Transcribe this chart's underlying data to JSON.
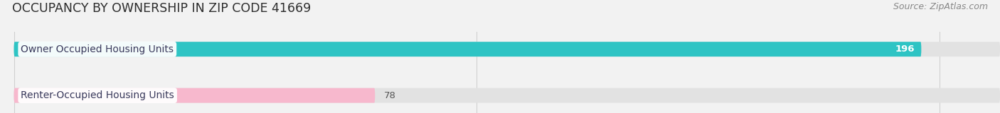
{
  "title": "OCCUPANCY BY OWNERSHIP IN ZIP CODE 41669",
  "source": "Source: ZipAtlas.com",
  "categories": [
    "Owner Occupied Housing Units",
    "Renter-Occupied Housing Units"
  ],
  "values": [
    196,
    78
  ],
  "bar_colors": [
    "#2ec4c4",
    "#f7b8cd"
  ],
  "xlim_min": -3,
  "xlim_max": 213,
  "xticks": [
    0,
    100,
    200
  ],
  "background_color": "#f2f2f2",
  "bar_bg_color": "#e2e2e2",
  "title_fontsize": 12.5,
  "source_fontsize": 9,
  "label_fontsize": 10,
  "value_fontsize": 9.5,
  "bar_height": 0.32,
  "bar_gap": 0.68,
  "fig_width": 14.06,
  "fig_height": 1.6
}
